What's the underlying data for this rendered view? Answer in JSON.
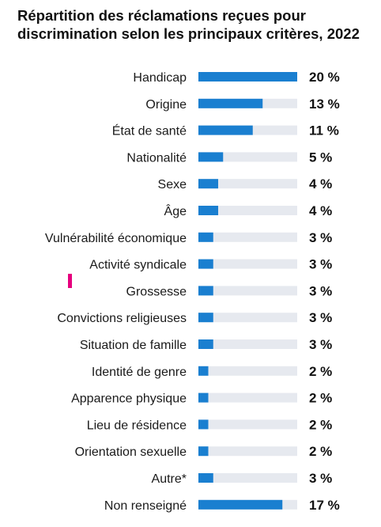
{
  "chart_data": {
    "type": "bar",
    "orientation": "horizontal",
    "title": "Répartition des réclamations reçues pour discrimination selon les principaux critères, 2022",
    "categories": [
      "Handicap",
      "Origine",
      "État de santé",
      "Nationalité",
      "Sexe",
      "Âge",
      "Vulnérabilité économique",
      "Activité syndicale",
      "Grossesse",
      "Convictions religieuses",
      "Situation de famille",
      "Identité de genre",
      "Apparence physique",
      "Lieu de résidence",
      "Orientation sexuelle",
      "Autre*",
      "Non renseigné"
    ],
    "values": [
      20,
      13,
      11,
      5,
      4,
      4,
      3,
      3,
      3,
      3,
      3,
      2,
      2,
      2,
      2,
      3,
      17
    ],
    "value_labels": [
      "20 %",
      "13 %",
      "11 %",
      "5 %",
      "4 %",
      "4 %",
      "3 %",
      "3 %",
      "3 %",
      "3 %",
      "3 %",
      "2 %",
      "2 %",
      "2 %",
      "2 %",
      "3 %",
      "17 %"
    ],
    "xlim": [
      0,
      20
    ],
    "grid": false,
    "legend": "none",
    "colors": {
      "bar": "#1a7fd0",
      "track": "#e6e9ef",
      "marker": "#e6007e"
    }
  }
}
